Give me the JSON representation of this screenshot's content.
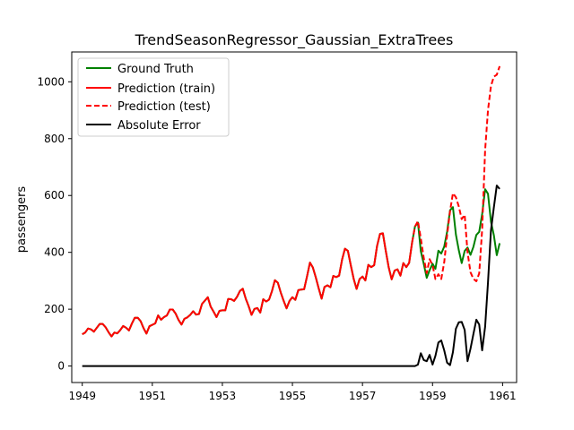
{
  "chart_data": {
    "type": "line",
    "title": "TrendSeasonRegressor_Gaussian_ExtraTrees",
    "xlabel": "",
    "ylabel": "passengers",
    "xlim": [
      1948.7,
      1961.4
    ],
    "ylim": [
      -58,
      1105
    ],
    "x_ticks": [
      1949,
      1951,
      1953,
      1955,
      1957,
      1959,
      1961
    ],
    "y_ticks": [
      0,
      200,
      400,
      600,
      800,
      1000
    ],
    "grid": false,
    "legend_position": "upper-left",
    "split_index": 114,
    "ground_truth": [
      112,
      118,
      132,
      129,
      121,
      135,
      148,
      148,
      136,
      119,
      104,
      118,
      115,
      126,
      141,
      135,
      125,
      149,
      170,
      170,
      158,
      133,
      114,
      140,
      145,
      150,
      178,
      163,
      172,
      178,
      199,
      199,
      184,
      162,
      146,
      166,
      171,
      180,
      193,
      181,
      183,
      218,
      230,
      242,
      209,
      191,
      172,
      194,
      196,
      196,
      236,
      235,
      229,
      243,
      264,
      272,
      237,
      211,
      180,
      201,
      204,
      188,
      235,
      227,
      234,
      264,
      302,
      293,
      259,
      229,
      203,
      229,
      242,
      233,
      267,
      269,
      270,
      315,
      364,
      347,
      312,
      274,
      237,
      278,
      284,
      277,
      317,
      313,
      318,
      374,
      413,
      405,
      355,
      306,
      271,
      306,
      315,
      301,
      356,
      348,
      355,
      422,
      465,
      467,
      404,
      347,
      305,
      336,
      340,
      318,
      362,
      348,
      363,
      435,
      491,
      505,
      404,
      359,
      310,
      337,
      360,
      342,
      406,
      396,
      420,
      472,
      548,
      559,
      463,
      407,
      362,
      405,
      417,
      391,
      419,
      461,
      472,
      535,
      622,
      606,
      508,
      461,
      390,
      432
    ],
    "prediction": [
      112,
      118,
      132,
      129,
      121,
      135,
      148,
      148,
      136,
      119,
      104,
      118,
      115,
      126,
      141,
      135,
      125,
      149,
      170,
      170,
      158,
      133,
      114,
      140,
      145,
      150,
      178,
      163,
      172,
      178,
      199,
      199,
      184,
      162,
      146,
      166,
      171,
      180,
      193,
      181,
      183,
      218,
      230,
      242,
      209,
      191,
      172,
      194,
      196,
      196,
      236,
      235,
      229,
      243,
      264,
      272,
      237,
      211,
      180,
      201,
      204,
      188,
      235,
      227,
      234,
      264,
      302,
      293,
      259,
      229,
      203,
      229,
      242,
      233,
      267,
      269,
      270,
      315,
      364,
      347,
      312,
      274,
      237,
      278,
      284,
      277,
      317,
      313,
      318,
      374,
      413,
      405,
      355,
      306,
      271,
      306,
      315,
      301,
      356,
      348,
      355,
      422,
      465,
      467,
      404,
      347,
      305,
      336,
      340,
      318,
      362,
      348,
      363,
      435,
      491,
      510,
      449,
      380,
      327,
      376,
      355,
      306,
      323,
      306,
      365,
      460,
      545,
      608,
      594,
      561,
      517,
      532,
      400,
      330,
      307,
      298,
      326,
      480,
      760,
      900,
      985,
      1018,
      1025,
      1055
    ],
    "series": [
      {
        "name": "Ground Truth",
        "color": "#008000",
        "style": "solid"
      },
      {
        "name": "Prediction (train)",
        "color": "#ff0000",
        "style": "solid"
      },
      {
        "name": "Prediction (test)",
        "color": "#ff0000",
        "style": "dashed"
      },
      {
        "name": "Absolute Error",
        "color": "#000000",
        "style": "solid"
      }
    ]
  }
}
